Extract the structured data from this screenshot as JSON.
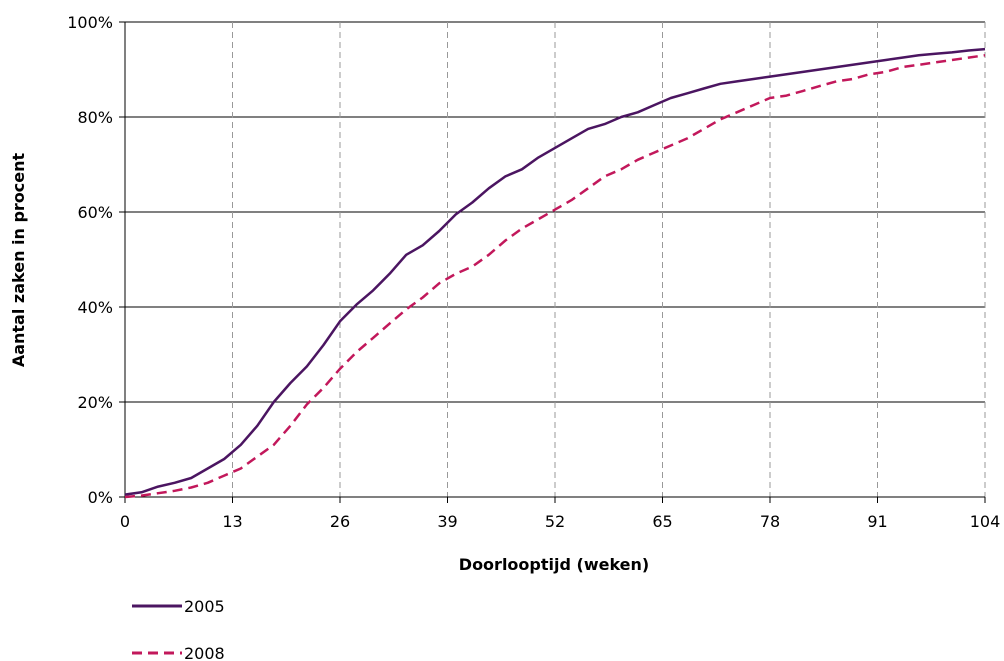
{
  "chart_data": {
    "type": "line",
    "title": "",
    "xlabel": "Doorlooptijd (weken)",
    "ylabel": "Aantal zaken in procent",
    "xlim": [
      0,
      104
    ],
    "ylim": [
      0,
      100
    ],
    "xticks": [
      0,
      13,
      26,
      39,
      52,
      65,
      78,
      91,
      104
    ],
    "yticks": [
      0,
      20,
      40,
      60,
      80,
      100
    ],
    "xtick_labels": [
      "0",
      "13",
      "26",
      "39",
      "52",
      "65",
      "78",
      "91",
      "104"
    ],
    "ytick_labels": [
      "0%",
      "20%",
      "40%",
      "60%",
      "80%",
      "100%"
    ],
    "grid": {
      "horizontal": "solid",
      "vertical": "dashed"
    },
    "legend_position": "bottom-left",
    "series": [
      {
        "name": "2005",
        "color": "#4b1561",
        "dash": "solid",
        "x": [
          0,
          2,
          4,
          6,
          8,
          10,
          12,
          14,
          16,
          18,
          20,
          22,
          24,
          26,
          28,
          30,
          32,
          34,
          36,
          38,
          40,
          42,
          44,
          46,
          48,
          50,
          52,
          54,
          56,
          58,
          60,
          62,
          64,
          66,
          68,
          70,
          72,
          74,
          76,
          78,
          80,
          82,
          84,
          86,
          88,
          90,
          92,
          94,
          96,
          98,
          100,
          102,
          104
        ],
        "values": [
          0.5,
          1,
          2.2,
          3,
          4,
          6,
          8,
          11,
          15,
          20,
          24,
          27.5,
          32,
          37,
          40.5,
          43.5,
          47,
          51,
          53,
          56,
          59.5,
          62,
          65,
          67.5,
          69,
          71.5,
          73.5,
          75.5,
          77.5,
          78.5,
          80,
          81,
          82.5,
          84,
          85,
          86,
          87,
          87.5,
          88,
          88.5,
          89,
          89.5,
          90,
          90.5,
          91,
          91.5,
          92,
          92.5,
          93,
          93.3,
          93.6,
          94,
          94.3
        ]
      },
      {
        "name": "2008",
        "color": "#c2185b",
        "dash": "dashed",
        "x": [
          0,
          2,
          4,
          6,
          8,
          10,
          12,
          14,
          16,
          18,
          20,
          22,
          24,
          26,
          28,
          30,
          32,
          34,
          36,
          38,
          40,
          42,
          44,
          46,
          48,
          50,
          52,
          54,
          56,
          58,
          60,
          62,
          64,
          66,
          68,
          70,
          72,
          74,
          76,
          78,
          80,
          82,
          84,
          86,
          88,
          90,
          92,
          94,
          96,
          98,
          100,
          102,
          104
        ],
        "values": [
          0,
          0.3,
          0.8,
          1.3,
          2,
          3,
          4.5,
          6,
          8.5,
          11,
          15,
          19.5,
          23,
          27,
          30.5,
          33.5,
          36.5,
          39.5,
          42,
          45,
          47,
          48.5,
          51,
          54,
          56.5,
          58.5,
          60.5,
          62.5,
          65,
          67.5,
          69,
          71,
          72.5,
          74,
          75.5,
          77.5,
          79.5,
          81,
          82.5,
          84,
          84.5,
          85.5,
          86.5,
          87.5,
          88,
          89,
          89.5,
          90.5,
          91,
          91.5,
          92,
          92.5,
          93
        ]
      }
    ]
  }
}
